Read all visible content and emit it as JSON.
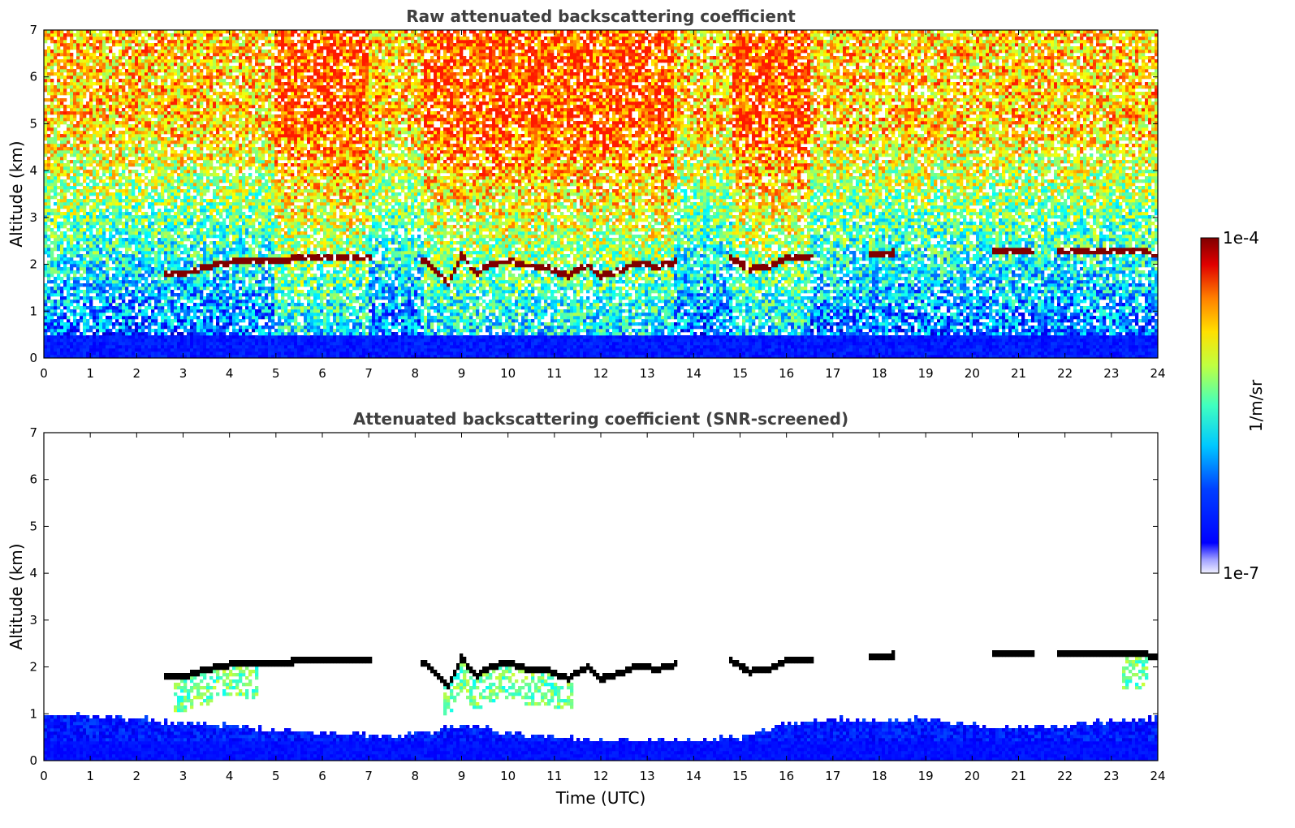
{
  "chart_data": [
    {
      "type": "heatmap",
      "title": "Raw attenuated backscattering coefficient",
      "xlabel": "",
      "ylabel": "Altitude (km)",
      "xlim": [
        0,
        24
      ],
      "ylim": [
        0,
        7
      ],
      "x_ticks": [
        "0",
        "1",
        "2",
        "3",
        "4",
        "5",
        "6",
        "7",
        "8",
        "9",
        "10",
        "11",
        "12",
        "13",
        "14",
        "15",
        "16",
        "17",
        "18",
        "19",
        "20",
        "21",
        "22",
        "23",
        "24"
      ],
      "y_ticks": [
        "0",
        "1",
        "2",
        "3",
        "4",
        "5",
        "6",
        "7"
      ],
      "cloud_layer": {
        "time": [
          2.6,
          3.0,
          3.5,
          4.0,
          4.5,
          5.0,
          5.5,
          6.0,
          6.5,
          7.0,
          8.2,
          8.5,
          8.7,
          9.0,
          9.3,
          9.6,
          10.0,
          10.4,
          10.8,
          11.3,
          11.7,
          12.0,
          12.4,
          12.8,
          13.2,
          13.6,
          14.8,
          15.2,
          15.6,
          16.0,
          16.5,
          17.8,
          18.2,
          20.5,
          21.3,
          21.9,
          22.5,
          23.0,
          23.5,
          24.0
        ],
        "altitude_km": [
          1.8,
          1.8,
          1.95,
          2.05,
          2.05,
          2.1,
          2.12,
          2.15,
          2.15,
          2.15,
          2.1,
          1.8,
          1.6,
          2.2,
          1.8,
          2.0,
          2.1,
          1.95,
          1.95,
          1.75,
          2.0,
          1.75,
          1.85,
          2.05,
          1.95,
          2.05,
          2.15,
          1.9,
          1.95,
          2.15,
          2.15,
          2.25,
          2.25,
          2.32,
          2.32,
          2.3,
          2.28,
          2.32,
          2.3,
          2.22
        ]
      }
    },
    {
      "type": "heatmap",
      "title": "Attenuated backscattering coefficient (SNR-screened)",
      "xlabel": "Time (UTC)",
      "ylabel": "Altitude (km)",
      "xlim": [
        0,
        24
      ],
      "ylim": [
        0,
        7
      ],
      "x_ticks": [
        "0",
        "1",
        "2",
        "3",
        "4",
        "5",
        "6",
        "7",
        "8",
        "9",
        "10",
        "11",
        "12",
        "13",
        "14",
        "15",
        "16",
        "17",
        "18",
        "19",
        "20",
        "21",
        "22",
        "23",
        "24"
      ],
      "y_ticks": [
        "0",
        "1",
        "2",
        "3",
        "4",
        "5",
        "6",
        "7"
      ],
      "low_signal_top_km": [
        1.0,
        0.95,
        0.9,
        0.8,
        0.75,
        0.65,
        0.6,
        0.55,
        0.55,
        0.8,
        0.6,
        0.5,
        0.45,
        0.45,
        0.45,
        0.5,
        0.8,
        0.9,
        0.85,
        0.9,
        0.75,
        0.7,
        0.75,
        0.85,
        0.9
      ]
    }
  ],
  "colorbar": {
    "label": "1/m/sr",
    "max_label": "1e-4",
    "min_label": "1e-7",
    "colormap": "jet"
  }
}
